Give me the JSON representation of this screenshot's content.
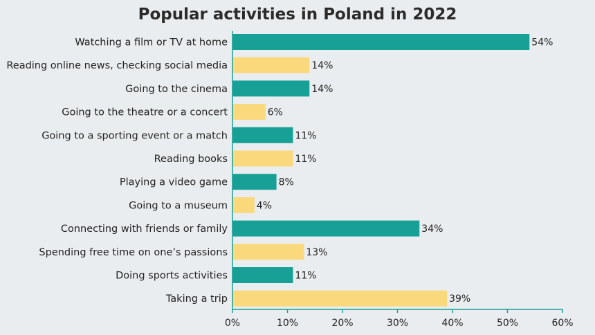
{
  "chart_data": {
    "type": "bar",
    "orientation": "horizontal",
    "title": "Popular activities in Poland in 2022",
    "categories": [
      "Watching a film or TV at home",
      "Reading online news, checking social media",
      "Going to the cinema",
      "Going to the theatre or a concert",
      "Going to a sporting event or a match",
      "Reading books",
      "Playing a video game",
      "Going to a museum",
      "Connecting with friends or family",
      "Spending free time on one’s passions",
      "Doing sports activities",
      "Taking a trip"
    ],
    "values": [
      54,
      14,
      14,
      6,
      11,
      11,
      8,
      4,
      34,
      13,
      11,
      39
    ],
    "value_labels": [
      "54%",
      "14%",
      "14%",
      "6%",
      "11%",
      "11%",
      "8%",
      "4%",
      "34%",
      "13%",
      "11%",
      "39%"
    ],
    "bar_colors": [
      "#17a095",
      "#f9d97c",
      "#17a095",
      "#f9d97c",
      "#17a095",
      "#f9d97c",
      "#17a095",
      "#f9d97c",
      "#17a095",
      "#f9d97c",
      "#17a095",
      "#f9d97c"
    ],
    "xticks": [
      0,
      10,
      20,
      30,
      40,
      50,
      60
    ],
    "xtick_labels": [
      "0%",
      "10%",
      "20%",
      "30%",
      "40%",
      "50%",
      "60%"
    ],
    "xlim": [
      0,
      60
    ],
    "xlabel": "",
    "ylabel": "",
    "grid": false,
    "colors": {
      "background": "#eaedef",
      "axis": "#17a095",
      "teal": "#17a095",
      "yellow": "#f9d97c"
    }
  }
}
